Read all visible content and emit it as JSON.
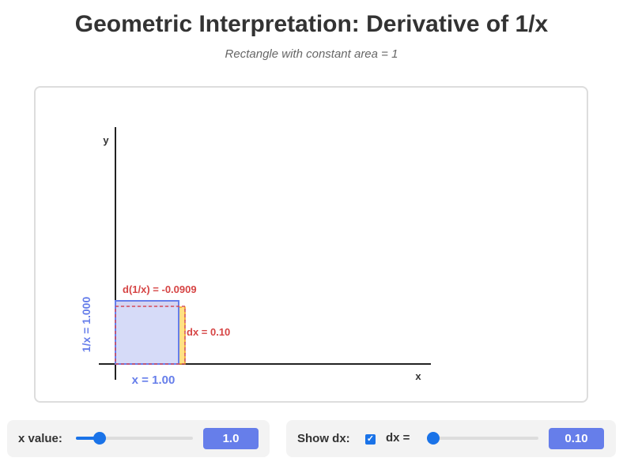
{
  "header": {
    "title": "Geometric Interpretation: Derivative of 1/x",
    "subtitle": "Rectangle with constant area = 1"
  },
  "graph": {
    "y_axis_label": "y",
    "x_axis_label": "x",
    "x_value_label": "x = 1.00",
    "inv_value_label": "1/x = 1.000",
    "d_inv_label": "d(1/x) = -0.0909",
    "dx_label": "dx = 0.10",
    "colors": {
      "rect_fill": "#d1d7f7",
      "rect_stroke": "#667eea",
      "dx_fill": "#ffd966",
      "dx_stroke": "#f0a020",
      "delta_fill": "#e8a0a8",
      "delta_stroke": "#d44a5a",
      "label_red": "#d64545",
      "label_blue": "#667eea"
    }
  },
  "controls": {
    "x_slider": {
      "label": "x value:",
      "value_text": "1.0",
      "fraction": 0.17
    },
    "dx_toggle": {
      "label": "Show dx:",
      "checked": true,
      "check_icon": "check-icon"
    },
    "dx_slider": {
      "label": "dx =",
      "value_text": "0.10",
      "fraction": 0.0
    }
  }
}
